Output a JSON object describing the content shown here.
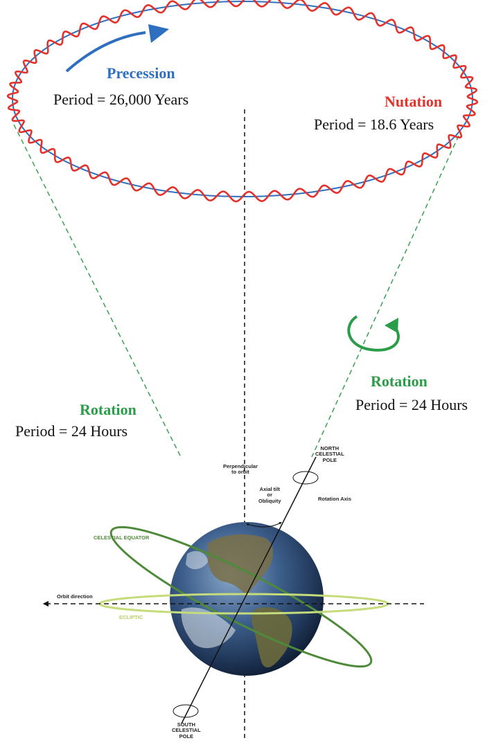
{
  "colors": {
    "precession": "#2f6fbf",
    "nutation": "#e3322b",
    "rotation": "#2a9d48",
    "celestial_equator": "#4f8a3a",
    "ecliptic": "#b9d36b"
  },
  "precession": {
    "title": "Precession",
    "period": "Period = 26,000 Years"
  },
  "nutation": {
    "title": "Nutation",
    "period": "Period = 18.6 Years"
  },
  "rotation_left": {
    "title": "Rotation",
    "period": "Period = 24 Hours"
  },
  "rotation_right": {
    "title": "Rotation",
    "period": "Period = 24 Hours"
  },
  "earth_labels": {
    "perpendicular_line1": "Perpendicular",
    "perpendicular_line2": "to orbit",
    "north_line1": "NORTH",
    "north_line2": "CELESTIAL",
    "north_line3": "POLE",
    "axial_line1": "Axial tilt",
    "axial_line2": "or",
    "axial_line3": "Obliquity",
    "rotation_axis": "Rotation Axis",
    "celestial_equator": "CELESTIAL EQUATOR",
    "orbit_direction": "Orbit direction",
    "ecliptic": "ECLIPTIC",
    "south_line1": "SOUTH",
    "south_line2": "CELESTIAL",
    "south_line3": "POLE"
  }
}
